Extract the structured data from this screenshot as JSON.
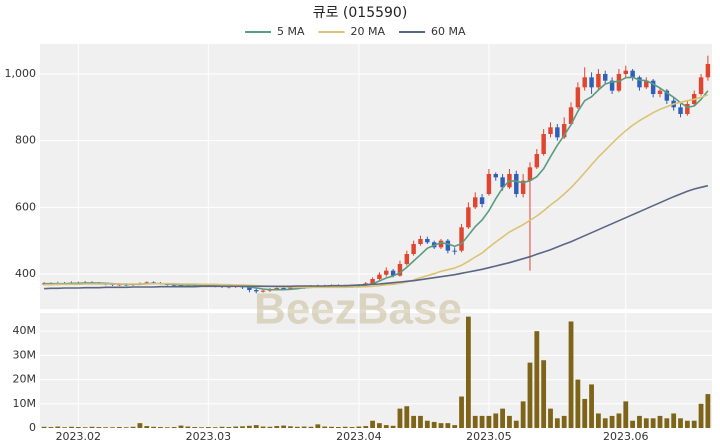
{
  "watermark": "BeezBase",
  "chart_data": [
    {
      "type": "candlestick",
      "title": "큐로 (015590)",
      "up_color": "#e0452f",
      "down_color": "#2f5fb8",
      "xlim": [
        -0.6,
        97.6
      ],
      "ylim": [
        295,
        1090
      ],
      "yticks": [
        400,
        600,
        800,
        {
          "value": 1000,
          "label": "1,000"
        }
      ],
      "grid": true,
      "open": [
        370,
        372,
        370,
        373,
        371,
        374,
        372,
        375,
        373,
        371,
        370,
        368,
        369,
        367,
        370,
        372,
        375,
        373,
        370,
        368,
        367,
        366,
        368,
        367,
        365,
        366,
        364,
        363,
        362,
        365,
        360,
        352,
        348,
        350,
        355,
        358,
        356,
        360,
        358,
        362,
        364,
        363,
        365,
        366,
        364,
        362,
        365,
        367,
        372,
        385,
        398,
        410,
        395,
        430,
        460,
        490,
        505,
        495,
        480,
        500,
        470,
        470,
        540,
        600,
        630,
        640,
        700,
        690,
        660,
        700,
        640,
        680,
        720,
        760,
        820,
        840,
        810,
        850,
        900,
        960,
        990,
        960,
        1000,
        980,
        950,
        1000,
        1010,
        990,
        960,
        980,
        940,
        950,
        920,
        900,
        880,
        910,
        940,
        990
      ],
      "high": [
        376,
        375,
        377,
        376,
        378,
        377,
        379,
        378,
        376,
        374,
        373,
        372,
        373,
        372,
        375,
        378,
        378,
        376,
        373,
        371,
        370,
        371,
        371,
        370,
        369,
        369,
        367,
        366,
        368,
        368,
        363,
        356,
        353,
        358,
        361,
        361,
        363,
        363,
        365,
        367,
        368,
        368,
        369,
        369,
        368,
        368,
        370,
        376,
        390,
        405,
        420,
        415,
        440,
        470,
        500,
        515,
        512,
        500,
        505,
        505,
        480,
        550,
        615,
        645,
        640,
        715,
        705,
        700,
        715,
        710,
        700,
        735,
        775,
        835,
        855,
        850,
        870,
        915,
        975,
        1020,
        1005,
        1015,
        1010,
        990,
        1015,
        1025,
        1015,
        995,
        990,
        985,
        960,
        955,
        930,
        910,
        920,
        950,
        1000,
        1055
      ],
      "low": [
        366,
        367,
        366,
        368,
        368,
        369,
        369,
        370,
        368,
        366,
        364,
        364,
        364,
        364,
        367,
        369,
        370,
        368,
        365,
        364,
        362,
        363,
        363,
        362,
        361,
        360,
        358,
        357,
        358,
        355,
        345,
        342,
        344,
        346,
        352,
        353,
        353,
        355,
        355,
        358,
        359,
        359,
        361,
        360,
        358,
        358,
        362,
        364,
        368,
        380,
        392,
        390,
        392,
        425,
        455,
        485,
        490,
        475,
        475,
        462,
        458,
        465,
        535,
        595,
        600,
        635,
        680,
        650,
        655,
        630,
        630,
        410,
        715,
        755,
        810,
        800,
        805,
        845,
        895,
        950,
        940,
        950,
        970,
        940,
        945,
        990,
        980,
        950,
        955,
        930,
        930,
        910,
        890,
        870,
        875,
        905,
        935,
        980
      ],
      "close": [
        372,
        370,
        373,
        371,
        374,
        372,
        375,
        373,
        371,
        370,
        368,
        369,
        367,
        370,
        372,
        375,
        373,
        370,
        368,
        367,
        366,
        368,
        367,
        365,
        366,
        364,
        363,
        362,
        365,
        360,
        352,
        348,
        350,
        355,
        358,
        356,
        360,
        358,
        362,
        364,
        363,
        365,
        366,
        364,
        362,
        365,
        367,
        372,
        385,
        398,
        410,
        395,
        430,
        460,
        490,
        505,
        495,
        480,
        500,
        470,
        468,
        540,
        600,
        630,
        610,
        700,
        690,
        660,
        700,
        640,
        680,
        720,
        760,
        820,
        840,
        810,
        850,
        900,
        960,
        990,
        960,
        1000,
        980,
        950,
        1000,
        1010,
        990,
        960,
        980,
        940,
        950,
        920,
        900,
        880,
        910,
        940,
        990,
        1030
      ],
      "series": [
        {
          "name": "5 MA",
          "color": "#5b9c80",
          "values": [
            371,
            371,
            371,
            371,
            372,
            372,
            373,
            373,
            373,
            372,
            371,
            370,
            369,
            369,
            369,
            371,
            371,
            371,
            370,
            369,
            368,
            367,
            367,
            366,
            366,
            366,
            365,
            364,
            364,
            363,
            361,
            358,
            355,
            353,
            353,
            353,
            354,
            356,
            359,
            360,
            361,
            362,
            364,
            364,
            364,
            364,
            365,
            366,
            371,
            379,
            388,
            394,
            404,
            420,
            439,
            458,
            477,
            486,
            494,
            490,
            483,
            491,
            516,
            542,
            562,
            590,
            626,
            658,
            680,
            678,
            674,
            680,
            692,
            716,
            752,
            786,
            816,
            848,
            888,
            920,
            932,
            952,
            970,
            976,
            978,
            989,
            990,
            982,
            980,
            970,
            958,
            944,
            930,
            914,
            900,
            904,
            924,
            950
          ]
        },
        {
          "name": "20 MA",
          "color": "#dcc373",
          "values": [
            368,
            368,
            369,
            369,
            369,
            369,
            370,
            370,
            370,
            370,
            370,
            370,
            370,
            370,
            370,
            370,
            371,
            371,
            371,
            371,
            370,
            370,
            370,
            369,
            369,
            369,
            368,
            368,
            367,
            367,
            366,
            365,
            364,
            363,
            362,
            361,
            361,
            360,
            360,
            360,
            360,
            360,
            360,
            360,
            360,
            361,
            361,
            362,
            363,
            365,
            368,
            369,
            372,
            376,
            382,
            389,
            395,
            401,
            408,
            413,
            418,
            426,
            438,
            451,
            463,
            480,
            496,
            511,
            526,
            537,
            548,
            561,
            574,
            590,
            607,
            622,
            640,
            659,
            681,
            704,
            728,
            751,
            771,
            792,
            812,
            830,
            846,
            860,
            872,
            884,
            894,
            902,
            910,
            915,
            920,
            924,
            930,
            938
          ]
        },
        {
          "name": "60 MA",
          "color": "#5b6585",
          "values": [
            356,
            357,
            357,
            358,
            358,
            358,
            359,
            359,
            359,
            360,
            360,
            360,
            360,
            361,
            361,
            361,
            361,
            362,
            362,
            362,
            362,
            362,
            362,
            363,
            363,
            363,
            363,
            363,
            363,
            363,
            363,
            363,
            363,
            363,
            363,
            363,
            363,
            364,
            364,
            364,
            364,
            364,
            365,
            365,
            365,
            366,
            367,
            368,
            369,
            370,
            372,
            374,
            376,
            378,
            380,
            383,
            386,
            389,
            392,
            395,
            398,
            402,
            406,
            410,
            414,
            419,
            424,
            429,
            434,
            440,
            446,
            452,
            459,
            466,
            473,
            481,
            489,
            497,
            506,
            515,
            524,
            533,
            542,
            551,
            560,
            569,
            578,
            587,
            596,
            605,
            614,
            623,
            632,
            640,
            648,
            655,
            660,
            665
          ]
        }
      ]
    },
    {
      "type": "bar",
      "color": "#7d6418",
      "xlim": [
        -0.6,
        97.6
      ],
      "ylim": [
        0,
        47500000
      ],
      "xticks": [
        {
          "value": 5,
          "label": "2023.02"
        },
        {
          "value": 24,
          "label": "2023.03"
        },
        {
          "value": 46,
          "label": "2023.04"
        },
        {
          "value": 65,
          "label": "2023.05"
        },
        {
          "value": 85,
          "label": "2023.06"
        }
      ],
      "yticks": [
        0,
        {
          "value": 10000000,
          "label": "10M"
        },
        {
          "value": 20000000,
          "label": "20M"
        },
        {
          "value": 30000000,
          "label": "30M"
        },
        {
          "value": 40000000,
          "label": "40M"
        }
      ],
      "grid": true,
      "values": [
        500000.0,
        400000.0,
        600000.0,
        300000.0,
        500000.0,
        400000.0,
        300000.0,
        500000.0,
        400000.0,
        300000.0,
        300000.0,
        400000.0,
        300000.0,
        500000.0,
        2000000.0,
        800000.0,
        500000.0,
        400000.0,
        300000.0,
        400000.0,
        1000000.0,
        600000.0,
        400000.0,
        300000.0,
        400000.0,
        300000.0,
        500000.0,
        400000.0,
        600000.0,
        700000.0,
        900000.0,
        1200000.0,
        600000.0,
        500000.0,
        800000.0,
        1000000.0,
        700000.0,
        500000.0,
        600000.0,
        500000.0,
        1500000.0,
        600000.0,
        500000.0,
        400000.0,
        500000.0,
        400000.0,
        600000.0,
        800000.0,
        3000000.0,
        2000000.0,
        1200000.0,
        900000.0,
        8000000.0,
        9000000.0,
        5000000.0,
        5000000.0,
        3000000.0,
        2500000.0,
        2000000.0,
        2000000.0,
        1200000.0,
        13000000.0,
        46000000.0,
        5000000.0,
        5000000.0,
        5000000.0,
        6000000.0,
        8000000.0,
        5000000.0,
        3000000.0,
        11000000.0,
        27000000.0,
        40000000.0,
        28000000.0,
        8000000.0,
        4000000.0,
        5000000.0,
        44000000.0,
        20000000.0,
        12000000.0,
        18000000.0,
        6000000.0,
        4000000.0,
        5000000.0,
        6000000.0,
        11000000.0,
        3000000.0,
        5000000.0,
        4000000.0,
        4000000.0,
        5000000.0,
        4000000.0,
        6000000.0,
        4000000.0,
        3000000.0,
        3000000.0,
        10000000.0,
        14000000.0
      ]
    }
  ]
}
